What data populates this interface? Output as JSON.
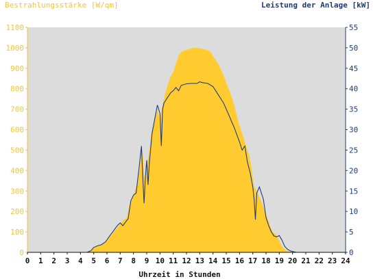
{
  "chart_data": {
    "type": "area",
    "title_left": "Bestrahlungsstärke [W/qm]",
    "title_right": "Leistung der Anlage [kW]",
    "xlabel": "Uhrzeit in Stunden",
    "xlim": [
      0,
      24
    ],
    "ylim_left": [
      0,
      1100
    ],
    "ylim_right": [
      0,
      55
    ],
    "x_ticks": [
      "0",
      "1",
      "2",
      "3",
      "4",
      "5",
      "6",
      "7",
      "8",
      "9",
      "10",
      "11",
      "12",
      "13",
      "14",
      "15",
      "16",
      "17",
      "18",
      "19",
      "20",
      "21",
      "22",
      "23",
      "24"
    ],
    "y_ticks_left": [
      "0",
      "100",
      "200",
      "300",
      "400",
      "500",
      "600",
      "700",
      "800",
      "900",
      "1000",
      "1100"
    ],
    "y_ticks_right": [
      "0",
      "5",
      "10",
      "15",
      "20",
      "25",
      "30",
      "35",
      "40",
      "45",
      "50",
      "55"
    ],
    "colors": {
      "plot_background": "#dcdcdc",
      "irradiance_fill": "#ffcb2f",
      "power_line": "#1f3b77",
      "left_axis_text": "#f5c33a",
      "right_axis_text": "#1f3b77"
    },
    "series": [
      {
        "name": "Bestrahlungsstärke [W/qm]",
        "axis": "left",
        "style": "area",
        "x": [
          0,
          4.3,
          4.7,
          5.0,
          5.3,
          5.6,
          5.9,
          6.2,
          6.5,
          6.8,
          7.0,
          7.3,
          7.5,
          7.7,
          7.9,
          8.1,
          8.3,
          8.5,
          8.6,
          8.7,
          8.8,
          8.9,
          9.0,
          9.2,
          9.4,
          9.6,
          9.8,
          10.0,
          10.2,
          10.4,
          10.6,
          10.8,
          11.0,
          11.2,
          11.4,
          11.6,
          11.8,
          12.0,
          12.3,
          12.6,
          12.9,
          13.2,
          13.5,
          13.8,
          14.1,
          14.4,
          14.7,
          15.0,
          15.3,
          15.6,
          15.9,
          16.1,
          16.3,
          16.5,
          16.7,
          16.9,
          17.0,
          17.1,
          17.3,
          17.5,
          17.7,
          17.9,
          18.1,
          18.3,
          18.5,
          18.7,
          18.9,
          19.1,
          19.3,
          19.5,
          19.7,
          20.0,
          20.3,
          20.6,
          24
        ],
        "values": [
          0,
          0,
          8,
          20,
          30,
          35,
          50,
          75,
          100,
          120,
          140,
          160,
          170,
          230,
          260,
          300,
          330,
          420,
          520,
          480,
          380,
          350,
          420,
          500,
          600,
          640,
          700,
          650,
          720,
          780,
          820,
          860,
          880,
          920,
          960,
          980,
          985,
          990,
          995,
          1000,
          998,
          995,
          990,
          980,
          950,
          920,
          880,
          830,
          780,
          720,
          640,
          600,
          560,
          520,
          480,
          420,
          360,
          320,
          300,
          270,
          240,
          200,
          170,
          130,
          100,
          90,
          70,
          40,
          20,
          10,
          5,
          0,
          0,
          0,
          0
        ]
      },
      {
        "name": "Leistung der Anlage [kW]",
        "axis": "right",
        "style": "line",
        "x": [
          0,
          4.5,
          4.8,
          5.0,
          5.3,
          5.6,
          5.9,
          6.2,
          6.5,
          6.8,
          7.0,
          7.2,
          7.4,
          7.6,
          7.8,
          8.0,
          8.2,
          8.4,
          8.6,
          8.7,
          8.8,
          8.9,
          9.0,
          9.1,
          9.2,
          9.4,
          9.6,
          9.8,
          10.0,
          10.1,
          10.2,
          10.3,
          10.5,
          10.8,
          11.0,
          11.2,
          11.4,
          11.6,
          12.0,
          12.4,
          12.8,
          13.0,
          13.2,
          13.6,
          14.0,
          14.4,
          14.8,
          15.2,
          15.6,
          16.0,
          16.2,
          16.4,
          16.6,
          16.8,
          17.0,
          17.1,
          17.2,
          17.3,
          17.5,
          17.8,
          18.0,
          18.2,
          18.4,
          18.6,
          18.8,
          19.0,
          19.2,
          19.4,
          19.6,
          19.8,
          20.0,
          20.3,
          20.6,
          24
        ],
        "values": [
          0,
          0,
          0.4,
          1.2,
          1.6,
          1.9,
          2.6,
          4.0,
          5.3,
          6.6,
          7.2,
          6.5,
          7.4,
          8.2,
          12.6,
          14.0,
          14.5,
          20.0,
          26.0,
          18.5,
          12.0,
          18.5,
          22.5,
          16.5,
          22.0,
          29.0,
          32.5,
          36.0,
          34.0,
          26.0,
          35.0,
          36.5,
          37.5,
          39.0,
          39.5,
          40.3,
          39.5,
          40.8,
          41.2,
          41.3,
          41.3,
          41.7,
          41.5,
          41.3,
          40.5,
          38.5,
          36.5,
          33.5,
          30.5,
          27.0,
          25.0,
          26.0,
          22.0,
          19.5,
          16.0,
          13.0,
          8.0,
          14.5,
          16.0,
          13.0,
          8.5,
          6.5,
          5.0,
          4.0,
          3.8,
          4.1,
          3.0,
          1.5,
          0.8,
          0.4,
          0.2,
          0,
          0,
          0
        ]
      }
    ]
  }
}
